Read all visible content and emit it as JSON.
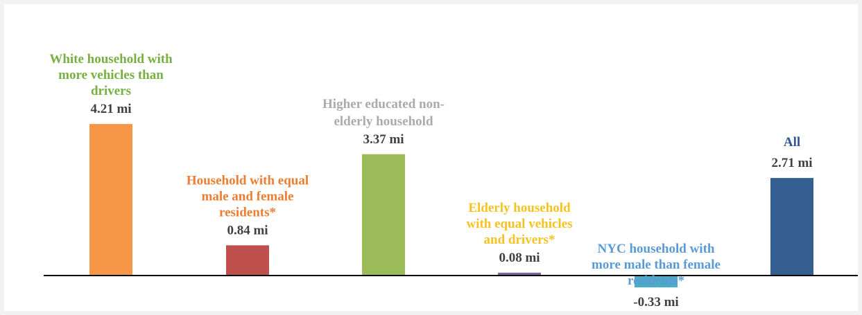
{
  "chart_data": {
    "type": "bar",
    "title": "",
    "xlabel": "",
    "ylabel": "",
    "unit": "mi",
    "ylim": [
      -0.4,
      4.7
    ],
    "grid": false,
    "legend": "none",
    "categories": [
      "White household with more vehicles than drivers",
      "Household with equal male and female residents*",
      "Higher educated non-elderly household",
      "Elderly household with equal vehicles and drivers*",
      "NYC household with more male than female residents*",
      "All"
    ],
    "values": [
      4.21,
      0.84,
      3.37,
      0.08,
      -0.33,
      2.71
    ],
    "value_labels": [
      "4.21 mi",
      "0.84 mi",
      "3.37 mi",
      "0.08 mi",
      "-0.33 mi",
      "2.71 mi"
    ],
    "category_label_lines": [
      [
        "White household with",
        "more vehicles than",
        "drivers"
      ],
      [
        "Household with equal",
        "male and female",
        "residents*"
      ],
      [
        "Higher educated non-",
        "elderly household"
      ],
      [
        "Elderly household",
        "with equal vehicles",
        "and drivers*"
      ],
      [
        "NYC household with",
        "more male than female",
        "residents*"
      ],
      [
        "All"
      ]
    ],
    "bar_colors": [
      "#f79646",
      "#c0504d",
      "#9bbb59",
      "#8064a2",
      "#4bacc6",
      "#355f91"
    ],
    "category_label_colors": [
      "#77b041",
      "#ed7d31",
      "#aaaaaa",
      "#f6c222",
      "#5b9bd5",
      "#2f5597"
    ],
    "value_label_color": "#404040",
    "axis_color": "#000000"
  }
}
